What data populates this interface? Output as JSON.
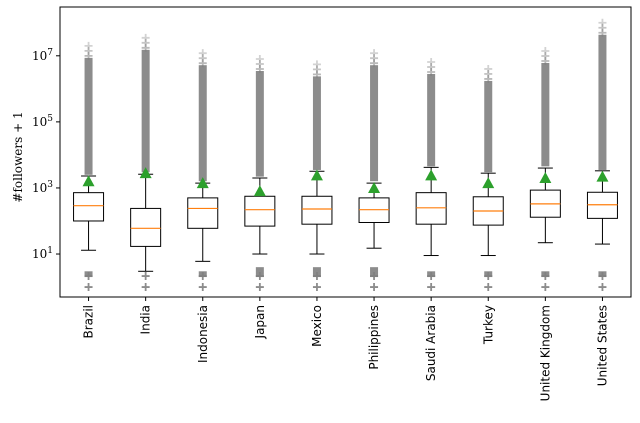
{
  "chart_data": {
    "type": "box",
    "title": "",
    "xlabel": "",
    "ylabel": "#followers + 1",
    "yscale": "log",
    "ylim": [
      0.5,
      300000000
    ],
    "yticks": [
      {
        "value": 10,
        "label": "10^1"
      },
      {
        "value": 1000,
        "label": "10^3"
      },
      {
        "value": 100000,
        "label": "10^5"
      },
      {
        "value": 10000000,
        "label": "10^7"
      }
    ],
    "categories": [
      "Brazil",
      "India",
      "Indonesia",
      "Japan",
      "Mexico",
      "Philippines",
      "Saudi Arabia",
      "Turkey",
      "United Kingdom",
      "United States"
    ],
    "boxes": [
      {
        "q1": 100,
        "median": 290,
        "q3": 720,
        "whisker_low": 13,
        "whisker_high": 2300,
        "mean": 1600,
        "flier_low_min": 1,
        "flier_low_max": 3,
        "flier_high_min": 2500,
        "flier_high_max": 20000000
      },
      {
        "q1": 17,
        "median": 60,
        "q3": 240,
        "whisker_low": 3,
        "whisker_high": 2600,
        "mean": 2800,
        "flier_low_min": 1,
        "flier_low_max": 2,
        "flier_high_min": 3000,
        "flier_high_max": 35000000
      },
      {
        "q1": 60,
        "median": 240,
        "q3": 500,
        "whisker_low": 6,
        "whisker_high": 1400,
        "mean": 1400,
        "flier_low_min": 1,
        "flier_low_max": 3,
        "flier_high_min": 1600,
        "flier_high_max": 12000000
      },
      {
        "q1": 70,
        "median": 220,
        "q3": 560,
        "whisker_low": 10,
        "whisker_high": 2000,
        "mean": 800,
        "flier_low_min": 1,
        "flier_low_max": 4,
        "flier_high_min": 2200,
        "flier_high_max": 8000000
      },
      {
        "q1": 80,
        "median": 230,
        "q3": 560,
        "whisker_low": 10,
        "whisker_high": 3200,
        "mean": 2400,
        "flier_low_min": 1,
        "flier_low_max": 4,
        "flier_high_min": 3500,
        "flier_high_max": 5500000
      },
      {
        "q1": 90,
        "median": 220,
        "q3": 500,
        "whisker_low": 15,
        "whisker_high": 1400,
        "mean": 1000,
        "flier_low_min": 1,
        "flier_low_max": 4,
        "flier_high_min": 1600,
        "flier_high_max": 12000000
      },
      {
        "q1": 80,
        "median": 250,
        "q3": 720,
        "whisker_low": 9,
        "whisker_high": 4200,
        "mean": 2400,
        "flier_low_min": 1,
        "flier_low_max": 3,
        "flier_high_min": 4500,
        "flier_high_max": 6500000
      },
      {
        "q1": 75,
        "median": 200,
        "q3": 540,
        "whisker_low": 9,
        "whisker_high": 2800,
        "mean": 1400,
        "flier_low_min": 1,
        "flier_low_max": 3,
        "flier_high_min": 3000,
        "flier_high_max": 4000000
      },
      {
        "q1": 130,
        "median": 330,
        "q3": 860,
        "whisker_low": 22,
        "whisker_high": 4000,
        "mean": 2000,
        "flier_low_min": 1,
        "flier_low_max": 3,
        "flier_high_min": 4500,
        "flier_high_max": 14000000
      },
      {
        "q1": 120,
        "median": 310,
        "q3": 740,
        "whisker_low": 20,
        "whisker_high": 3300,
        "mean": 2200,
        "flier_low_min": 1,
        "flier_low_max": 3,
        "flier_high_min": 3500,
        "flier_high_max": 100000000
      }
    ],
    "colors": {
      "box": "#000000",
      "median": "#ff7f0e",
      "mean": "#2ca02c",
      "flier": "#7f7f7f"
    },
    "grid": false,
    "legend": "none"
  }
}
